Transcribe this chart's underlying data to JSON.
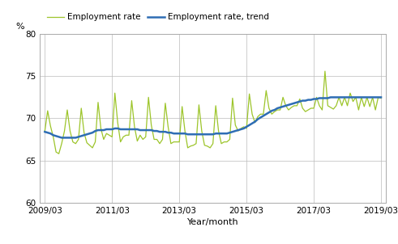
{
  "ylabel": "%",
  "xlabel": "Year/month",
  "ylim": [
    60,
    80
  ],
  "yticks": [
    60,
    65,
    70,
    75,
    80
  ],
  "xlabels": [
    "2009/03",
    "2011/03",
    "2013/03",
    "2015/03",
    "2017/03",
    "2019/03"
  ],
  "employment_rate_color": "#9DC52B",
  "trend_color": "#2E6DB4",
  "legend_labels": [
    "Employment rate",
    "Employment rate, trend"
  ],
  "employment_rate": [
    68.5,
    70.9,
    69.1,
    67.8,
    66.0,
    65.8,
    67.0,
    68.5,
    71.0,
    68.5,
    67.2,
    67.0,
    67.5,
    71.2,
    68.3,
    67.1,
    66.8,
    66.5,
    67.2,
    71.9,
    68.8,
    67.5,
    68.2,
    68.0,
    67.8,
    73.0,
    69.5,
    67.2,
    67.8,
    68.0,
    68.0,
    72.1,
    69.0,
    67.3,
    68.0,
    67.5,
    67.8,
    72.5,
    69.2,
    67.5,
    67.5,
    67.0,
    67.5,
    71.8,
    69.0,
    67.0,
    67.2,
    67.2,
    67.2,
    71.4,
    68.5,
    66.5,
    66.7,
    66.8,
    67.0,
    71.6,
    68.5,
    66.8,
    66.7,
    66.5,
    67.0,
    71.5,
    68.5,
    67.0,
    67.2,
    67.2,
    67.5,
    72.4,
    69.2,
    68.5,
    68.8,
    69.0,
    68.8,
    72.9,
    70.5,
    69.5,
    70.2,
    70.5,
    70.5,
    73.3,
    71.2,
    70.5,
    70.8,
    71.0,
    71.0,
    72.5,
    71.5,
    71.0,
    71.3,
    71.5,
    71.5,
    72.3,
    71.2,
    70.8,
    71.0,
    71.2,
    71.2,
    72.5,
    71.5,
    71.0,
    75.6,
    71.5,
    71.3,
    71.1,
    71.5,
    72.5,
    71.5,
    72.5,
    71.5,
    73.0,
    72.0,
    72.5,
    71.0,
    72.5,
    71.4,
    72.5,
    71.4,
    72.5,
    71.0,
    72.5,
    72.4
  ],
  "trend": [
    68.4,
    68.3,
    68.2,
    68.0,
    67.9,
    67.8,
    67.7,
    67.7,
    67.7,
    67.7,
    67.7,
    67.7,
    67.8,
    67.9,
    68.0,
    68.1,
    68.2,
    68.3,
    68.5,
    68.6,
    68.6,
    68.6,
    68.7,
    68.7,
    68.7,
    68.8,
    68.8,
    68.7,
    68.7,
    68.7,
    68.7,
    68.7,
    68.7,
    68.7,
    68.6,
    68.6,
    68.6,
    68.6,
    68.6,
    68.5,
    68.5,
    68.4,
    68.4,
    68.4,
    68.3,
    68.3,
    68.2,
    68.2,
    68.2,
    68.2,
    68.2,
    68.1,
    68.1,
    68.1,
    68.1,
    68.1,
    68.1,
    68.1,
    68.1,
    68.1,
    68.1,
    68.2,
    68.2,
    68.2,
    68.2,
    68.2,
    68.3,
    68.4,
    68.5,
    68.6,
    68.7,
    68.8,
    69.0,
    69.2,
    69.4,
    69.6,
    69.9,
    70.1,
    70.3,
    70.5,
    70.7,
    70.9,
    71.0,
    71.2,
    71.3,
    71.4,
    71.5,
    71.6,
    71.7,
    71.8,
    71.9,
    72.0,
    72.1,
    72.1,
    72.2,
    72.2,
    72.3,
    72.3,
    72.4,
    72.4,
    72.4,
    72.4,
    72.5,
    72.5,
    72.5,
    72.5,
    72.5,
    72.5,
    72.5,
    72.5,
    72.5,
    72.5,
    72.5,
    72.5,
    72.5,
    72.5,
    72.5,
    72.5,
    72.5,
    72.5,
    72.5
  ]
}
